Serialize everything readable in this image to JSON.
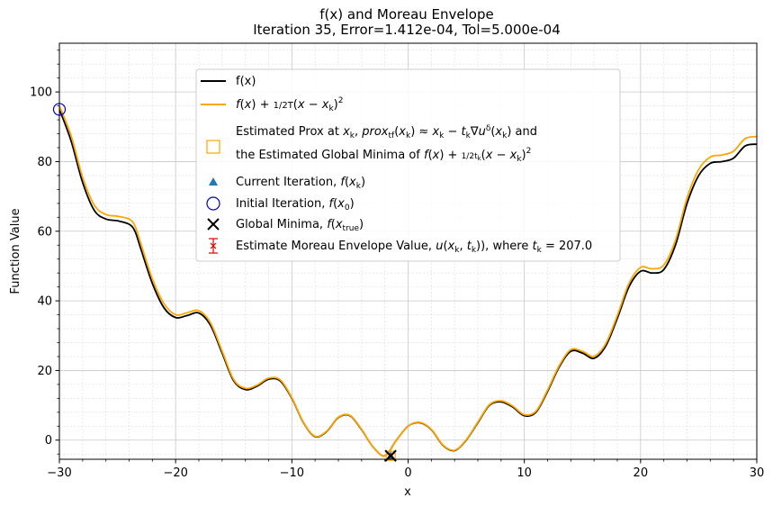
{
  "chart_data": {
    "type": "line",
    "title": "f(x) and Moreau Envelope",
    "subtitle": "Iteration 35, Error=1.412e-04, Tol=5.000e-04",
    "xlabel": "x",
    "ylabel": "Function Value",
    "xlim": [
      -30,
      30
    ],
    "ylim": [
      -5.5,
      114
    ],
    "xticks": [
      -30,
      -20,
      -10,
      0,
      10,
      20,
      30
    ],
    "yticks": [
      0,
      20,
      40,
      60,
      80,
      100
    ],
    "grid": "major and minor",
    "legend_position": "upper-center",
    "series": [
      {
        "name": "f(x)",
        "color": "#000000",
        "x": [
          -30,
          -29,
          -28,
          -27,
          -26,
          -25,
          -24,
          -23.5,
          -23,
          -22,
          -21,
          -20,
          -19,
          -18,
          -17,
          -16,
          -15,
          -14,
          -13,
          -12,
          -11,
          -10,
          -9,
          -8,
          -7,
          -6,
          -5,
          -4,
          -3,
          -2,
          -1,
          0,
          1,
          2,
          3,
          4,
          5,
          6,
          7,
          8,
          9,
          10,
          11,
          12,
          13,
          14,
          15,
          16,
          17,
          18,
          19,
          20,
          21,
          22,
          23,
          24,
          25,
          26,
          27,
          28,
          29,
          30
        ],
        "y": [
          95,
          86,
          74,
          66,
          63.5,
          63,
          62,
          60,
          55,
          45,
          38,
          35.2,
          35.8,
          36.5,
          33,
          25,
          17,
          14.5,
          15.5,
          17.5,
          17,
          12,
          5,
          1,
          2.5,
          6.5,
          7,
          3,
          -2,
          -4.5,
          0,
          4,
          5,
          3,
          -1.5,
          -3,
          0,
          5,
          10,
          11,
          9.5,
          7,
          8,
          14,
          21,
          25.5,
          25,
          23.5,
          27,
          35,
          44,
          48.5,
          48,
          49,
          56,
          68,
          76,
          79.5,
          80,
          81,
          84.5,
          85
        ]
      },
      {
        "name": "f(x) + 1/(2T)(x - x_k)^2",
        "color": "#ffa500",
        "x": [
          -30,
          -29,
          -28,
          -27,
          -26,
          -25,
          -24,
          -23.5,
          -23,
          -22,
          -21,
          -20,
          -19,
          -18,
          -17,
          -16,
          -15,
          -14,
          -13,
          -12,
          -11,
          -10,
          -9,
          -8,
          -7,
          -6,
          -5,
          -4,
          -3,
          -2,
          -1,
          0,
          1,
          2,
          3,
          4,
          5,
          6,
          7,
          8,
          9,
          10,
          11,
          12,
          13,
          14,
          15,
          16,
          17,
          18,
          19,
          20,
          21,
          22,
          23,
          24,
          25,
          26,
          27,
          28,
          29,
          30
        ],
        "y": [
          96,
          87.5,
          75.5,
          67.5,
          64.8,
          64.3,
          63.5,
          61.5,
          56.5,
          46.3,
          39.2,
          36,
          36.6,
          37.2,
          33.7,
          25.6,
          17.4,
          14.9,
          15.8,
          17.8,
          17.3,
          12.2,
          5.1,
          1.1,
          2.6,
          6.6,
          7.1,
          3.1,
          -2,
          -4.5,
          0,
          4,
          5.1,
          3.1,
          -1.4,
          -2.9,
          0.1,
          5.2,
          10.2,
          11.3,
          9.8,
          7.3,
          8.3,
          14.4,
          21.4,
          26,
          25.5,
          24.1,
          27.7,
          35.8,
          45,
          49.6,
          49.2,
          50.3,
          57.4,
          69.6,
          77.7,
          81.3,
          81.9,
          83,
          86.6,
          87.2
        ]
      }
    ],
    "markers": {
      "initial_iteration": {
        "x": -30,
        "y": 95,
        "color": "#0000cc"
      },
      "current_iteration": {
        "x": -1.5,
        "y": -4.5,
        "color": "#1f77b4"
      },
      "global_minima": {
        "x": -1.5,
        "y": -4.5,
        "color": "#000000"
      },
      "estimated_prox": {
        "x": -1.5,
        "y": -4.5,
        "color": "#ffa500"
      },
      "moreau_value": {
        "x": -1.5,
        "y": -4.5,
        "color": "#e00000"
      }
    },
    "legend": [
      {
        "key": "fx",
        "text": "f(x)"
      },
      {
        "key": "env",
        "text": "f(x) + 1/(2T)(x − x_k)^2"
      },
      {
        "key": "prox_line1",
        "text": "Estimated Prox at x_k, prox_tf(x_k) ≈ x_k − t_k∇u^δ(x_k) and"
      },
      {
        "key": "prox_line2",
        "text": "the Estimated Global Minima of f(x) + 1/(2t_k)(x − x_k)^2"
      },
      {
        "key": "current",
        "text": "Current Iteration, f(x_k)"
      },
      {
        "key": "initial",
        "text": "Initial Iteration, f(x_0)"
      },
      {
        "key": "global",
        "text": "Global Minima, f(x_true)"
      },
      {
        "key": "moreau",
        "text": "Estimate Moreau Envelope Value, u(x_k, t_k)), where t_k = 207.0"
      }
    ]
  }
}
